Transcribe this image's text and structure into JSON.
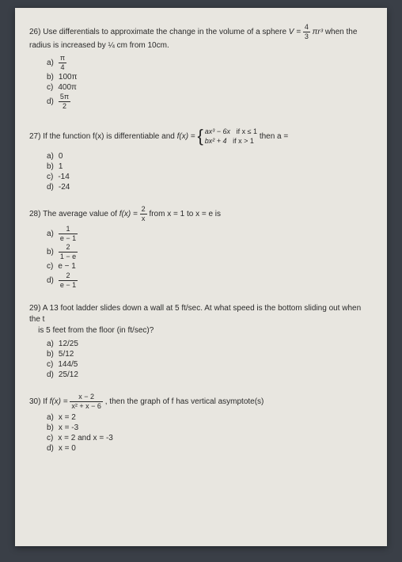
{
  "questions": {
    "q26": {
      "num": "26)",
      "text1": "Use differentials to approximate the change in the volume of a sphere ",
      "formula_v": "V = ",
      "frac_num": "4",
      "frac_den": "3",
      "formula_after": "πr³",
      "text2": " when the radius is increased by ¼ cm from 10cm.",
      "opts": {
        "a": "a)",
        "a_num": "π",
        "a_den": "4",
        "b": "b)",
        "b_val": "100π",
        "c": "c)",
        "c_val": "400π",
        "d": "d)",
        "d_num": "5π",
        "d_den": "2"
      }
    },
    "q27": {
      "num": "27)",
      "text1": "If the function f(x) is differentiable and ",
      "fx": "f(x) = ",
      "pw1_l": "ax³ − 6x",
      "pw1_r": "if x ≤ 1",
      "pw2_l": "bx² + 4",
      "pw2_r": "if x > 1",
      "text2": " then a =",
      "opts": {
        "a": "a)",
        "a_val": "0",
        "b": "b)",
        "b_val": "1",
        "c": "c)",
        "c_val": "-14",
        "d": "d)",
        "d_val": "-24"
      }
    },
    "q28": {
      "num": "28)",
      "text1": "The average value of ",
      "fx": "f(x) = ",
      "frac_num": "2",
      "frac_den": "x",
      "text2": " from x = 1 to x = e is",
      "opts": {
        "a": "a)",
        "a_num": "1",
        "a_den": "e − 1",
        "b": "b)",
        "b_num": "2",
        "b_den": "1 − e",
        "c": "c)",
        "c_val": "e − 1",
        "d": "d)",
        "d_num": "2",
        "d_den": "e − 1"
      }
    },
    "q29": {
      "num": "29)",
      "text1": "A 13 foot ladder slides down a wall at 5 ft/sec. At what speed is the bottom sliding out when the t",
      "text2": "is 5 feet from the floor (in ft/sec)?",
      "opts": {
        "a": "a)",
        "a_val": "12/25",
        "b": "b)",
        "b_val": "5/12",
        "c": "c)",
        "c_val": "144/5",
        "d": "d)",
        "d_val": "25/12"
      }
    },
    "q30": {
      "num": "30)",
      "text1": "If ",
      "fx": "f(x) = ",
      "frac_num": "x − 2",
      "frac_den": "x² + x − 6",
      "text2": " , then the graph of f has vertical asymptote(s)",
      "opts": {
        "a": "a)",
        "a_val": "x = 2",
        "b": "b)",
        "b_val": "x = -3",
        "c": "c)",
        "c_val": "x = 2 and x = -3",
        "d": "d)",
        "d_val": "x = 0"
      }
    }
  }
}
